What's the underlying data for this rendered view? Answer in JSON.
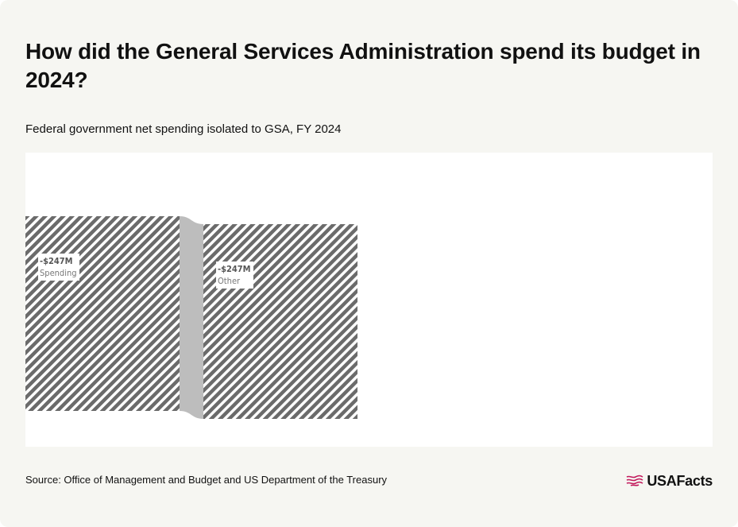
{
  "header": {
    "title": "How did the General Services Administration spend its budget in 2024?",
    "subtitle": "Federal government net spending isolated to GSA, FY 2024"
  },
  "footer": {
    "source": "Source: Office of Management and Budget and US Department of the Treasury",
    "brand": "USAFacts",
    "brand_icon": "us-flag-icon",
    "brand_color": "#c2185b"
  },
  "chart_data": {
    "type": "sankey",
    "units": "USD millions",
    "nodes": [
      {
        "id": "spending",
        "name": "Spending",
        "value": -247,
        "label_value": "-$247M",
        "column": 0
      },
      {
        "id": "other",
        "name": "Other",
        "value": -247,
        "label_value": "-$247M",
        "column": 1
      }
    ],
    "links": [
      {
        "source": "spending",
        "target": "other",
        "value": -247
      }
    ],
    "colors": {
      "node_hatch_stroke": "#6b6b6b",
      "node_hatch_background": "#ffffff",
      "link": "#bdbdbd"
    }
  }
}
